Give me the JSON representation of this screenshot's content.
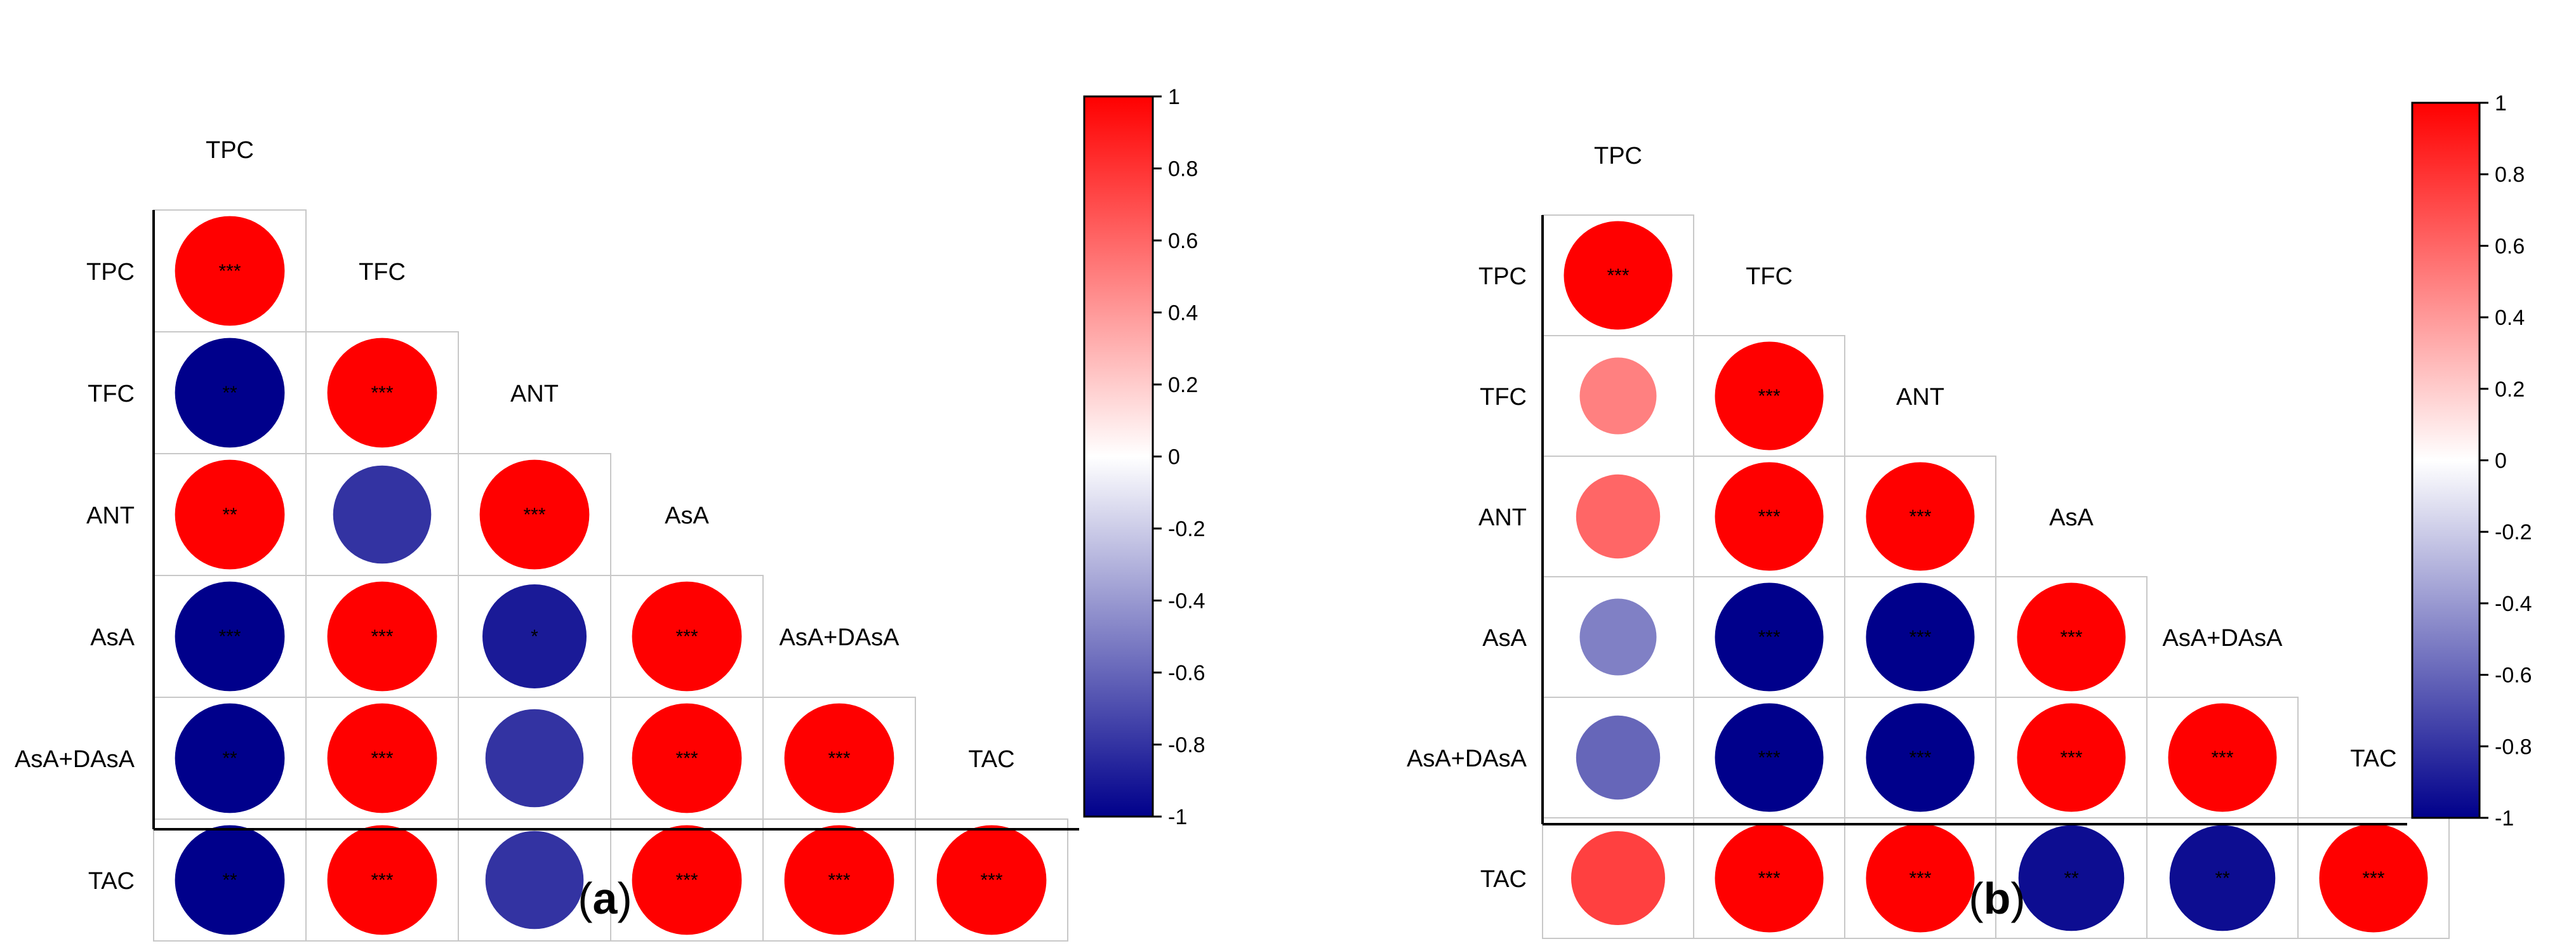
{
  "colors": {
    "positive": "#ff0000",
    "neutral": "#ffffff",
    "negative": "#00008b",
    "cell_border": "#c8c8c8",
    "axis": "#000000"
  },
  "chart_data": [
    {
      "type": "heatmap",
      "panel_label": "a",
      "variables": [
        "TPC",
        "TFC",
        "ANT",
        "AsA",
        "AsA+DAsA",
        "TAC"
      ],
      "matrix_lower": [
        [
          1.0
        ],
        [
          -1.0,
          1.0
        ],
        [
          1.0,
          -0.8,
          1.0
        ],
        [
          -1.0,
          1.0,
          -0.9,
          1.0
        ],
        [
          -1.0,
          1.0,
          -0.8,
          1.0,
          1.0
        ],
        [
          -1.0,
          1.0,
          -0.8,
          1.0,
          1.0,
          1.0
        ]
      ],
      "significance_lower": [
        [
          "***"
        ],
        [
          "**",
          "***"
        ],
        [
          "**",
          "",
          "***"
        ],
        [
          "***",
          "***",
          "*",
          "***"
        ],
        [
          "**",
          "***",
          "",
          "***",
          "***"
        ],
        [
          "**",
          "***",
          "",
          "***",
          "***",
          "***"
        ]
      ],
      "colorbar": {
        "range": [
          -1,
          1
        ],
        "ticks": [
          "1",
          "0.8",
          "0.6",
          "0.4",
          "0.2",
          "0",
          "-0.2",
          "-0.4",
          "-0.6",
          "-0.8",
          "-1"
        ]
      }
    },
    {
      "type": "heatmap",
      "panel_label": "b",
      "variables": [
        "TPC",
        "TFC",
        "ANT",
        "AsA",
        "AsA+DAsA",
        "TAC"
      ],
      "matrix_lower": [
        [
          1.0
        ],
        [
          0.5,
          1.0
        ],
        [
          0.6,
          1.0,
          1.0
        ],
        [
          -0.5,
          -1.0,
          -1.0,
          1.0
        ],
        [
          -0.6,
          -1.0,
          -1.0,
          1.0,
          1.0
        ],
        [
          0.75,
          1.0,
          1.0,
          -0.95,
          -0.95,
          1.0
        ]
      ],
      "significance_lower": [
        [
          "***"
        ],
        [
          "",
          "***"
        ],
        [
          "",
          "***",
          "***"
        ],
        [
          "",
          "***",
          "***",
          "***"
        ],
        [
          "",
          "***",
          "***",
          "***",
          "***"
        ],
        [
          "",
          "***",
          "***",
          "**",
          "**",
          "***"
        ]
      ],
      "colorbar": {
        "range": [
          -1,
          1
        ],
        "ticks": [
          "1",
          "0.8",
          "0.6",
          "0.4",
          "0.2",
          "0",
          "-0.2",
          "-0.4",
          "-0.6",
          "-0.8",
          "-1"
        ]
      }
    }
  ]
}
